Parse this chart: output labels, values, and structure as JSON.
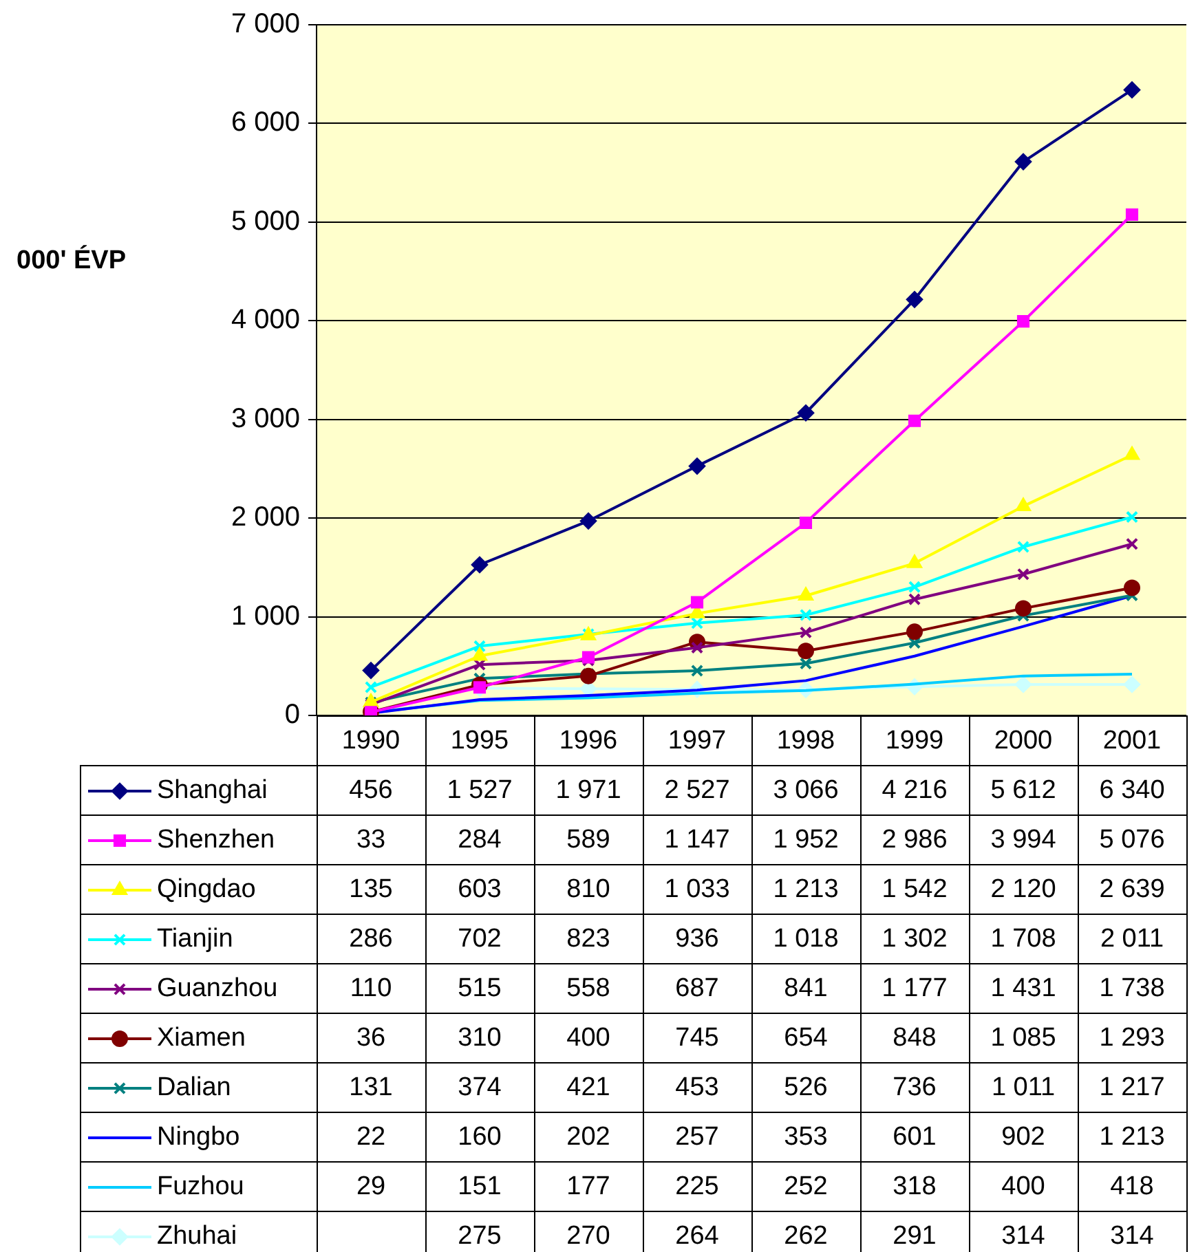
{
  "chart_data": {
    "type": "line",
    "ylabel": "000' ÉVP",
    "categories": [
      "1990",
      "1995",
      "1996",
      "1997",
      "1998",
      "1999",
      "2000",
      "2001"
    ],
    "ylim": [
      0,
      7000
    ],
    "yticks": [
      {
        "value": 0,
        "label": "0"
      },
      {
        "value": 1000,
        "label": "1 000"
      },
      {
        "value": 2000,
        "label": "2 000"
      },
      {
        "value": 3000,
        "label": "3 000"
      },
      {
        "value": 4000,
        "label": "4 000"
      },
      {
        "value": 5000,
        "label": "5 000"
      },
      {
        "value": 6000,
        "label": "6 000"
      },
      {
        "value": 7000,
        "label": "7 000"
      }
    ],
    "grid": "y",
    "legend": "bottom",
    "line_style": "solid",
    "series": [
      {
        "name": "Shanghai",
        "color": "#000080",
        "marker": "diamond",
        "values": [
          456,
          1527,
          1971,
          2527,
          3066,
          4216,
          5612,
          6340
        ],
        "value_labels": [
          "456",
          "1 527",
          "1 971",
          "2 527",
          "3 066",
          "4 216",
          "5 612",
          "6 340"
        ]
      },
      {
        "name": "Shenzhen",
        "color": "#ff00ff",
        "marker": "square",
        "values": [
          33,
          284,
          589,
          1147,
          1952,
          2986,
          3994,
          5076
        ],
        "value_labels": [
          "33",
          "284",
          "589",
          "1 147",
          "1 952",
          "2 986",
          "3 994",
          "5 076"
        ]
      },
      {
        "name": "Qingdao",
        "color": "#ffff00",
        "marker": "triangle",
        "values": [
          135,
          603,
          810,
          1033,
          1213,
          1542,
          2120,
          2639
        ],
        "value_labels": [
          "135",
          "603",
          "810",
          "1 033",
          "1 213",
          "1 542",
          "2 120",
          "2 639"
        ]
      },
      {
        "name": "Tianjin",
        "color": "#00ffff",
        "marker": "cross",
        "values": [
          286,
          702,
          823,
          936,
          1018,
          1302,
          1708,
          2011
        ],
        "value_labels": [
          "286",
          "702",
          "823",
          "936",
          "1 018",
          "1 302",
          "1 708",
          "2 011"
        ]
      },
      {
        "name": "Guanzhou",
        "color": "#800080",
        "marker": "cross",
        "values": [
          110,
          515,
          558,
          687,
          841,
          1177,
          1431,
          1738
        ],
        "value_labels": [
          "110",
          "515",
          "558",
          "687",
          "841",
          "1 177",
          "1 431",
          "1 738"
        ]
      },
      {
        "name": "Xiamen",
        "color": "#800000",
        "marker": "circle",
        "values": [
          36,
          310,
          400,
          745,
          654,
          848,
          1085,
          1293
        ],
        "value_labels": [
          "36",
          "310",
          "400",
          "745",
          "654",
          "848",
          "1 085",
          "1 293"
        ]
      },
      {
        "name": "Dalian",
        "color": "#008080",
        "marker": "cross",
        "values": [
          131,
          374,
          421,
          453,
          526,
          736,
          1011,
          1217
        ],
        "value_labels": [
          "131",
          "374",
          "421",
          "453",
          "526",
          "736",
          "1 011",
          "1 217"
        ]
      },
      {
        "name": "Ningbo",
        "color": "#0000ff",
        "marker": "none",
        "values": [
          22,
          160,
          202,
          257,
          353,
          601,
          902,
          1213
        ],
        "value_labels": [
          "22",
          "160",
          "202",
          "257",
          "353",
          "601",
          "902",
          "1 213"
        ]
      },
      {
        "name": "Fuzhou",
        "color": "#00ccff",
        "marker": "none",
        "values": [
          29,
          151,
          177,
          225,
          252,
          318,
          400,
          418
        ],
        "value_labels": [
          "29",
          "151",
          "177",
          "225",
          "252",
          "318",
          "400",
          "418"
        ]
      },
      {
        "name": "Zhuhai",
        "color": "#ccffff",
        "marker": "diamond",
        "values": [
          null,
          275,
          270,
          264,
          262,
          291,
          314,
          314
        ],
        "value_labels": [
          null,
          "275",
          "270",
          "264",
          "262",
          "291",
          "314",
          "314"
        ]
      }
    ]
  }
}
